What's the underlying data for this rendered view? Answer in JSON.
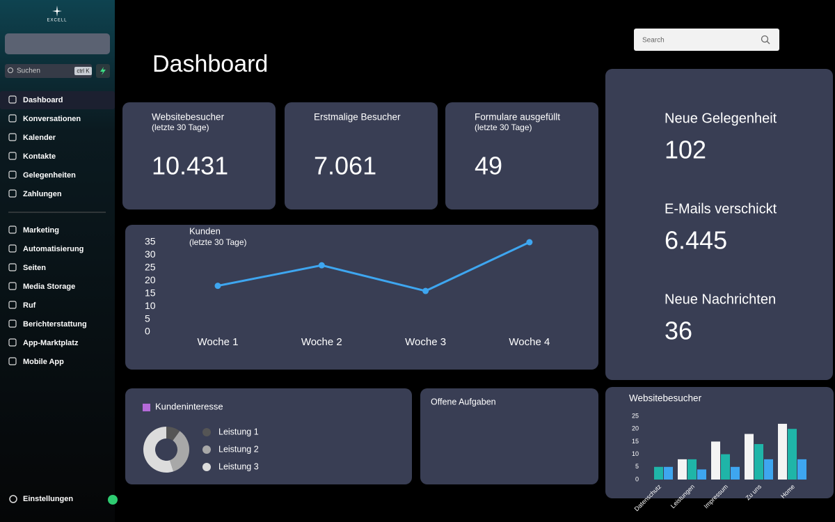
{
  "sidebar": {
    "logo": "EXCELL",
    "search_placeholder": "Suchen",
    "shortcut": "ctrl K",
    "nav_main": [
      "Dashboard",
      "Konversationen",
      "Kalender",
      "Kontakte",
      "Gelegenheiten",
      "Zahlungen"
    ],
    "nav_tools": [
      "Marketing",
      "Automatisierung",
      "Seiten",
      "Media Storage",
      "Ruf",
      "Berichterstattung",
      "App-Marktplatz",
      "Mobile App"
    ],
    "settings": "Einstellungen"
  },
  "header": {
    "title": "Dashboard",
    "search_placeholder": "Search"
  },
  "stats": [
    {
      "label": "Websitebesucher",
      "sublabel": "(letzte 30 Tage)",
      "value": "10.431"
    },
    {
      "label": "Erstmalige Besucher",
      "value": "7.061"
    },
    {
      "label": "Formulare ausgefüllt",
      "sublabel": "(letzte 30 Tage)",
      "value": "49"
    }
  ],
  "side_stats": [
    {
      "label": "Neue Gelegenheit",
      "value": "102"
    },
    {
      "label": "E-Mails verschickt",
      "value": "6.445"
    },
    {
      "label": "Neue Nachrichten",
      "value": "36"
    }
  ],
  "tasks": {
    "title": "Offene Aufgaben"
  },
  "chart_data": [
    {
      "type": "line",
      "title": "Kunden",
      "subtitle": "(letzte 30 Tage)",
      "categories": [
        "Woche 1",
        "Woche 2",
        "Woche 3",
        "Woche 4"
      ],
      "values": [
        18,
        26,
        16,
        35
      ],
      "color": "#3ea6f0",
      "ylim": [
        0,
        35
      ],
      "yticks": [
        0,
        5,
        10,
        15,
        20,
        25,
        30,
        35
      ],
      "grid": false
    },
    {
      "type": "pie",
      "title": "Kundeninteresse",
      "categories": [
        "Leistung 1",
        "Leistung 2",
        "Leistung 3"
      ],
      "values": [
        10,
        35,
        55
      ],
      "colors": [
        "#555555",
        "#a8a8a8",
        "#dcdcdc"
      ]
    },
    {
      "type": "bar",
      "title": "Websitebesucher",
      "categories": [
        "Datenschutz",
        "Leistungen",
        "Impressum",
        "Zu uns",
        "Home"
      ],
      "series": [
        {
          "color": "#f4f4f4",
          "values": [
            0,
            8,
            15,
            18,
            22
          ]
        },
        {
          "color": "#1fb5a8",
          "values": [
            5,
            8,
            10,
            14,
            20
          ]
        },
        {
          "color": "#3ea6f0",
          "values": [
            5,
            4,
            5,
            8,
            8
          ]
        }
      ],
      "ylim": [
        0,
        25
      ],
      "yticks": [
        0,
        5,
        10,
        15,
        20,
        25
      ],
      "grid": false
    }
  ]
}
